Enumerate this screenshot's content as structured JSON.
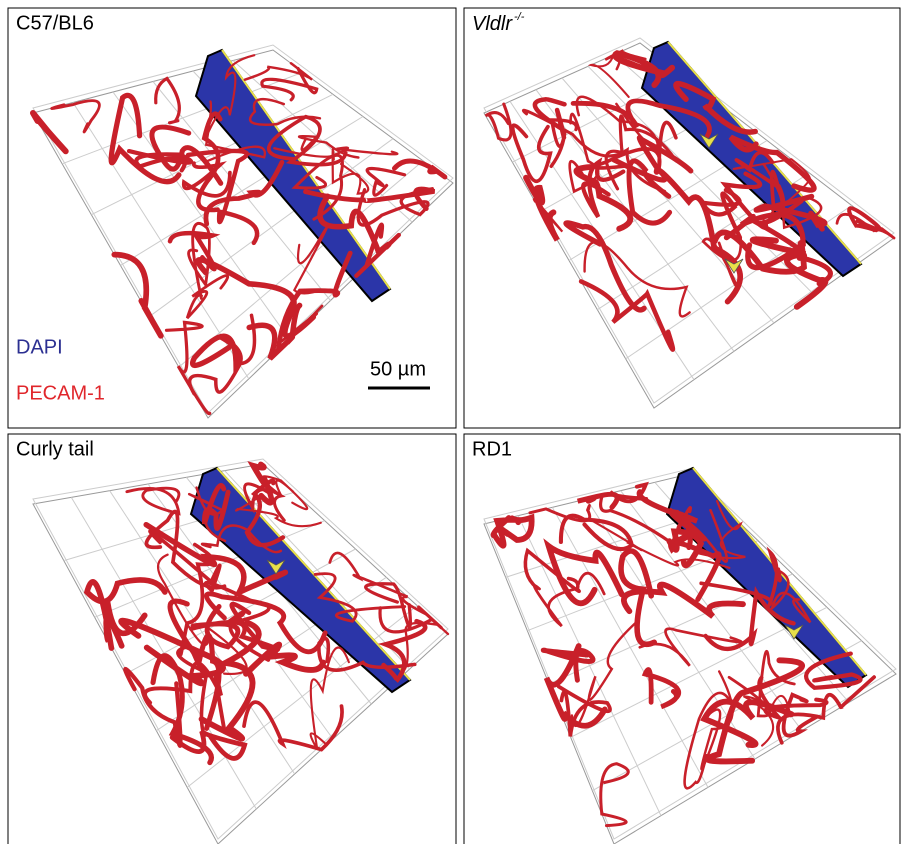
{
  "panels": [
    {
      "label": "C57/BL6"
    },
    {
      "label": "Vldlr",
      "superscript": "-/-"
    },
    {
      "label": "Curly tail"
    },
    {
      "label": "RD1"
    }
  ],
  "legend": [
    "DAPI",
    "PECAM-1"
  ],
  "scale_bar": "50 µm"
}
